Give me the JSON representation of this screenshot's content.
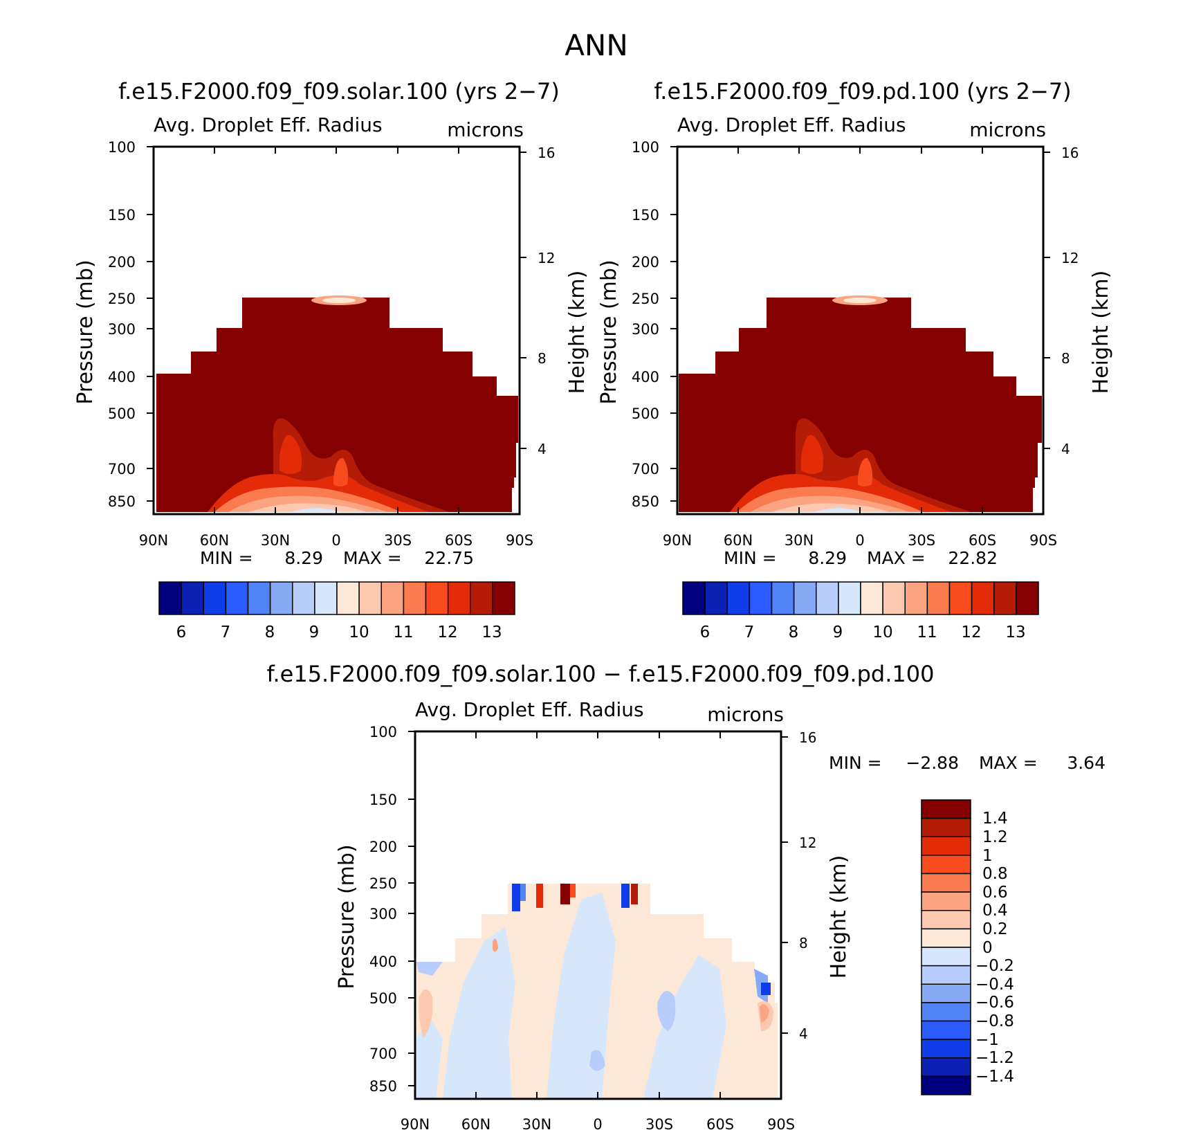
{
  "figure": {
    "title": "ANN"
  },
  "colors": {
    "abs_levels": [
      "#00007f",
      "#0b21b4",
      "#0f3ee8",
      "#2a5cff",
      "#5084f7",
      "#86aaf6",
      "#b7cdfb",
      "#d6e6fb",
      "#fde8d8",
      "#fcc8b0",
      "#fba482",
      "#fa7b4f",
      "#f84c1e",
      "#e32b08",
      "#b51c08",
      "#850000"
    ],
    "diff_levels": [
      "#00007f",
      "#0b21b4",
      "#0f3ee8",
      "#2a5cff",
      "#5084f7",
      "#86aaf6",
      "#b7cdfb",
      "#d6e6fb",
      "#fde8d8",
      "#fcc8b0",
      "#fba482",
      "#fa7b4f",
      "#f84c1e",
      "#e32b08",
      "#b51c08",
      "#850000"
    ]
  },
  "chart_data": [
    {
      "type": "heatmap",
      "title": "f.e15.F2000.f09_f09.solar.100 (yrs 2−7)",
      "subtitle_left": "Avg. Droplet Eff. Radius",
      "subtitle_right": "microns",
      "ylabel": "Pressure (mb)",
      "y2label": "Height (km)",
      "xticks": [
        "90N",
        "60N",
        "30N",
        "0",
        "30S",
        "60S",
        "90S"
      ],
      "yticks": [
        "100",
        "150",
        "200",
        "250",
        "300",
        "400",
        "500",
        "700",
        "850"
      ],
      "y2ticks": [
        "16",
        "12",
        "8",
        "4"
      ],
      "min_label": "MIN =",
      "min_value": "8.29",
      "max_label": "MAX =",
      "max_value": "22.75",
      "colorbar_ticks": [
        "6",
        "7",
        "8",
        "9",
        "10",
        "11",
        "12",
        "13"
      ]
    },
    {
      "type": "heatmap",
      "title": "f.e15.F2000.f09_f09.pd.100 (yrs 2−7)",
      "subtitle_left": "Avg. Droplet Eff. Radius",
      "subtitle_right": "microns",
      "ylabel": "Pressure (mb)",
      "y2label": "Height (km)",
      "xticks": [
        "90N",
        "60N",
        "30N",
        "0",
        "30S",
        "60S",
        "90S"
      ],
      "yticks": [
        "100",
        "150",
        "200",
        "250",
        "300",
        "400",
        "500",
        "700",
        "850"
      ],
      "y2ticks": [
        "16",
        "12",
        "8",
        "4"
      ],
      "min_label": "MIN =",
      "min_value": "8.29",
      "max_label": "MAX =",
      "max_value": "22.82",
      "colorbar_ticks": [
        "6",
        "7",
        "8",
        "9",
        "10",
        "11",
        "12",
        "13"
      ]
    },
    {
      "type": "heatmap",
      "title": "f.e15.F2000.f09_f09.solar.100 − f.e15.F2000.f09_f09.pd.100",
      "subtitle_left": "Avg. Droplet Eff. Radius",
      "subtitle_right": "microns",
      "ylabel": "Pressure (mb)",
      "y2label": "Height (km)",
      "xticks": [
        "90N",
        "60N",
        "30N",
        "0",
        "30S",
        "60S",
        "90S"
      ],
      "yticks": [
        "100",
        "150",
        "200",
        "250",
        "300",
        "400",
        "500",
        "700",
        "850"
      ],
      "y2ticks": [
        "16",
        "12",
        "8",
        "4"
      ],
      "min_label": "MIN =",
      "min_value": "−2.88",
      "max_label": "MAX =",
      "max_value": "3.64",
      "colorbar_ticks": [
        "1.4",
        "1.2",
        "1",
        "0.8",
        "0.6",
        "0.4",
        "0.2",
        "0",
        "−0.2",
        "−0.4",
        "−0.6",
        "−0.8",
        "−1",
        "−1.2",
        "−1.4"
      ]
    }
  ]
}
